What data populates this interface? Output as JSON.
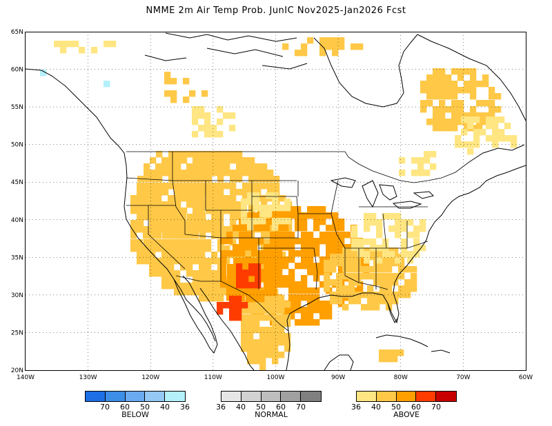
{
  "title": "NMME 2m Air Temp Prob. JunIC  Nov2025-Jan2026 Fcst",
  "lat_labels": [
    "65N",
    "60N",
    "55N",
    "50N",
    "45N",
    "40N",
    "35N",
    "30N",
    "25N",
    "20N"
  ],
  "lon_labels": [
    "140W",
    "130W",
    "120W",
    "110W",
    "100W",
    "90W",
    "80W",
    "70W",
    "60W"
  ],
  "legend": {
    "below": {
      "title": "BELOW",
      "colors": [
        "#1e6ee6",
        "#3c8ee6",
        "#6aaaf0",
        "#96c8f5",
        "#b4f0fa"
      ],
      "ticks": [
        "70",
        "60",
        "50",
        "40",
        "36"
      ]
    },
    "normal": {
      "title": "NORMAL",
      "colors": [
        "#e6e6e6",
        "#d2d2d2",
        "#bebebe",
        "#a0a0a0",
        "#808080"
      ],
      "ticks": [
        "36",
        "40",
        "50",
        "60",
        "70"
      ]
    },
    "above": {
      "title": "ABOVE",
      "colors": [
        "#ffe682",
        "#ffc846",
        "#ffa000",
        "#ff3c00",
        "#c80000"
      ],
      "ticks": [
        "36",
        "40",
        "50",
        "60",
        "70"
      ]
    }
  }
}
